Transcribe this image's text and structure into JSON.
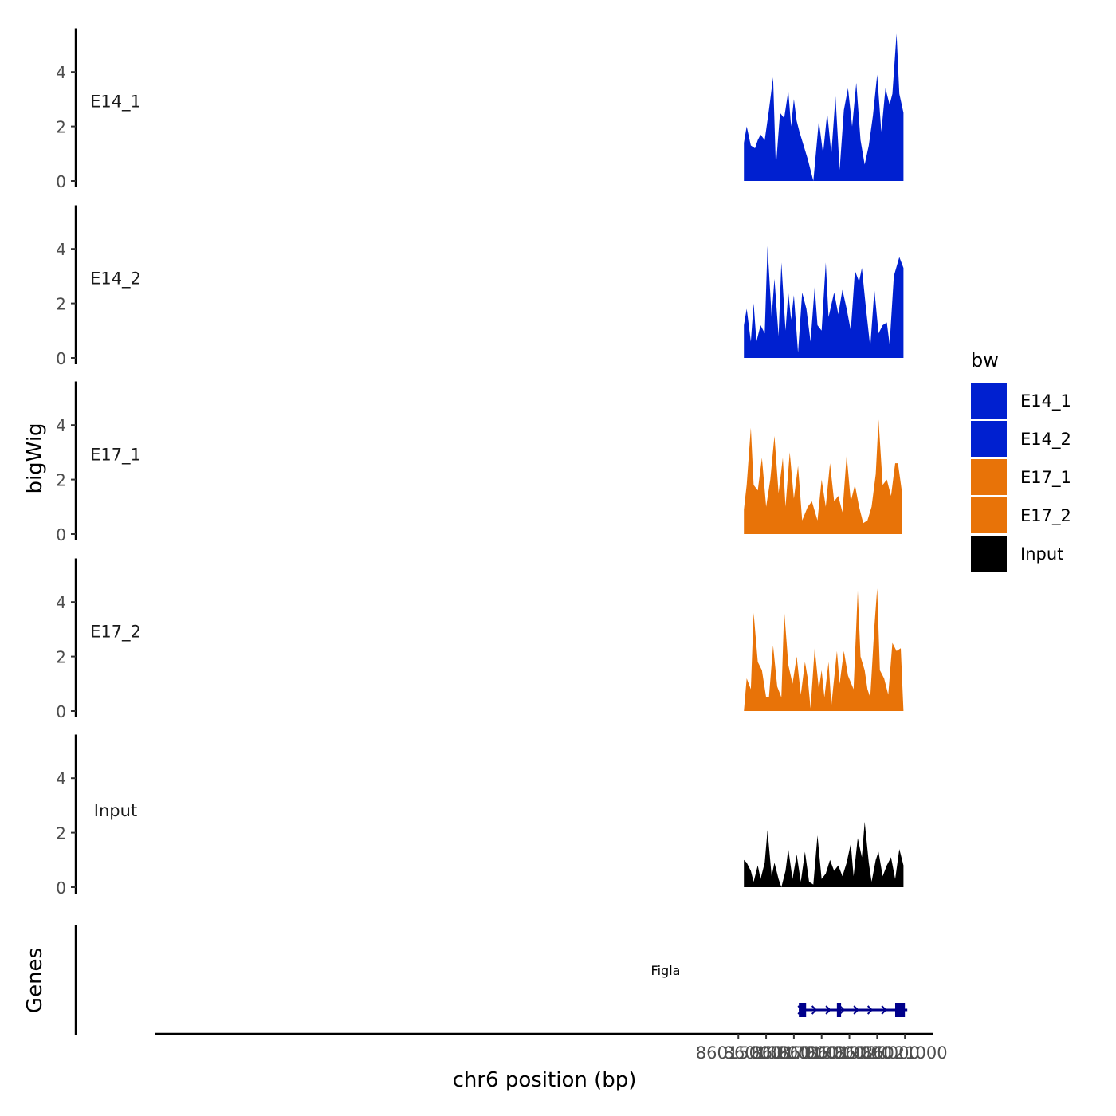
{
  "chart_data": {
    "type": "area",
    "ylabel": "bigWig",
    "xlabel": "chr6 position (bp)",
    "xlim": [
      85994000,
      86022000
    ],
    "x_ticks": [
      86015000,
      86016000,
      86017000,
      86018000,
      86019000,
      86020000,
      86021000
    ],
    "x_tick_labels": [
      "86015000",
      "86016000",
      "86017000",
      "86018000",
      "86019000",
      "86020000",
      "86021000"
    ],
    "ylim": [
      0,
      5.6
    ],
    "y_ticks": [
      0,
      2,
      4
    ],
    "y_tick_labels": [
      "0",
      "2",
      "4"
    ],
    "colors": {
      "E14": "#0020d0",
      "E17": "#e87308",
      "Input": "#000000",
      "gene": "#00008b"
    },
    "legend": {
      "title": "bw",
      "position": "right",
      "entries": [
        {
          "label": "E14_1",
          "color": "#0020d0"
        },
        {
          "label": "E14_2",
          "color": "#0020d0"
        },
        {
          "label": "E17_1",
          "color": "#e87308"
        },
        {
          "label": "E17_2",
          "color": "#e87308"
        },
        {
          "label": "Input",
          "color": "#000000"
        }
      ]
    },
    "series": [
      {
        "name": "E14_1",
        "color": "#0020d0",
        "x": [
          86015200,
          86015300,
          86015450,
          86015600,
          86015700,
          86015800,
          86015950,
          86016100,
          86016250,
          86016350,
          86016500,
          86016650,
          86016800,
          86016900,
          86017000,
          86017100,
          86017200,
          86017350,
          86017500,
          86017700,
          86017900,
          86018050,
          86018200,
          86018350,
          86018500,
          86018650,
          86018800,
          86018950,
          86019100,
          86019250,
          86019400,
          86019550,
          86019700,
          86019850,
          86020000,
          86020150,
          86020300,
          86020450,
          86020550,
          86020700,
          86020800,
          86020950
        ],
        "values": [
          1.4,
          2.0,
          1.3,
          1.2,
          1.5,
          1.7,
          1.5,
          2.6,
          3.8,
          0.5,
          2.5,
          2.3,
          3.3,
          2.0,
          3.0,
          2.2,
          1.8,
          1.3,
          0.8,
          0,
          2.2,
          1.0,
          2.5,
          1.0,
          3.1,
          0.4,
          2.6,
          3.4,
          2.0,
          3.6,
          1.5,
          0.6,
          1.3,
          2.4,
          3.9,
          1.8,
          3.4,
          2.8,
          3.2,
          5.4,
          3.2,
          2.5
        ]
      },
      {
        "name": "E14_2",
        "color": "#0020d0",
        "x": [
          86015200,
          86015300,
          86015450,
          86015550,
          86015650,
          86015800,
          86015950,
          86016050,
          86016200,
          86016300,
          86016450,
          86016550,
          86016700,
          86016800,
          86016900,
          86017000,
          86017150,
          86017300,
          86017450,
          86017600,
          86017750,
          86017850,
          86018000,
          86018150,
          86018250,
          86018450,
          86018600,
          86018750,
          86018900,
          86019050,
          86019200,
          86019350,
          86019450,
          86019600,
          86019750,
          86019900,
          86020050,
          86020200,
          86020350,
          86020450,
          86020600,
          86020800,
          86020950
        ],
        "values": [
          1.2,
          1.8,
          0.6,
          2.0,
          0.6,
          1.2,
          0.9,
          4.1,
          1.5,
          2.9,
          0.8,
          3.5,
          1.0,
          2.4,
          1.4,
          2.3,
          0.2,
          2.4,
          1.8,
          0.6,
          2.6,
          1.2,
          1.0,
          3.5,
          1.5,
          2.4,
          1.6,
          2.5,
          1.8,
          1.0,
          3.2,
          2.8,
          3.3,
          1.8,
          0.4,
          2.5,
          0.9,
          1.2,
          1.3,
          0.5,
          3.0,
          3.7,
          3.3
        ]
      },
      {
        "name": "E17_1",
        "color": "#e87308",
        "x": [
          86015200,
          86015300,
          86015450,
          86015550,
          86015700,
          86015850,
          86016000,
          86016150,
          86016300,
          86016450,
          86016600,
          86016700,
          86016850,
          86017000,
          86017150,
          86017300,
          86017500,
          86017650,
          86017850,
          86018000,
          86018150,
          86018300,
          86018450,
          86018600,
          86018750,
          86018900,
          86019050,
          86019200,
          86019350,
          86019500,
          86019650,
          86019800,
          86019950,
          86020050,
          86020200,
          86020350,
          86020500,
          86020650,
          86020750,
          86020900
        ],
        "values": [
          0.9,
          1.8,
          3.9,
          1.8,
          1.6,
          2.8,
          1.0,
          2.0,
          3.6,
          1.5,
          2.8,
          1.0,
          3.0,
          1.3,
          2.5,
          0.5,
          1.0,
          1.2,
          0.5,
          2.0,
          1.0,
          2.6,
          1.2,
          1.4,
          0.8,
          2.9,
          1.2,
          1.8,
          1.0,
          0.4,
          0.5,
          1.0,
          2.2,
          4.2,
          1.8,
          2.0,
          1.4,
          2.6,
          2.6,
          1.5
        ]
      },
      {
        "name": "E17_2",
        "color": "#e87308",
        "x": [
          86015200,
          86015300,
          86015450,
          86015550,
          86015700,
          86015850,
          86016000,
          86016100,
          86016250,
          86016400,
          86016550,
          86016650,
          86016800,
          86016950,
          86017100,
          86017250,
          86017400,
          86017500,
          86017600,
          86017750,
          86017900,
          86018000,
          86018100,
          86018250,
          86018350,
          86018550,
          86018650,
          86018800,
          86018950,
          86019150,
          86019300,
          86019400,
          86019550,
          86019650,
          86019750,
          86019900,
          86020000,
          86020100,
          86020250,
          86020400,
          86020550,
          86020700,
          86020850,
          86020950
        ],
        "values": [
          0,
          1.2,
          0.8,
          3.6,
          1.8,
          1.5,
          0.5,
          0.5,
          2.4,
          0.9,
          0.5,
          3.7,
          1.7,
          1.0,
          2.0,
          0.6,
          1.8,
          1.2,
          0.1,
          2.3,
          0.8,
          1.5,
          0.5,
          1.8,
          0.2,
          2.2,
          1.0,
          2.2,
          1.3,
          0.8,
          4.4,
          2.0,
          1.5,
          0.8,
          0.5,
          3.1,
          4.5,
          1.5,
          1.2,
          0.6,
          2.5,
          2.2,
          2.3,
          0
        ]
      },
      {
        "name": "Input",
        "color": "#000000",
        "x": [
          86015200,
          86015300,
          86015450,
          86015550,
          86015700,
          86015800,
          86015950,
          86016050,
          86016200,
          86016300,
          86016450,
          86016550,
          86016700,
          86016800,
          86016950,
          86017100,
          86017250,
          86017400,
          86017550,
          86017700,
          86017850,
          86018000,
          86018150,
          86018300,
          86018450,
          86018600,
          86018750,
          86018900,
          86019050,
          86019150,
          86019300,
          86019450,
          86019550,
          86019700,
          86019800,
          86019950,
          86020050,
          86020200,
          86020350,
          86020500,
          86020650,
          86020800,
          86020950
        ],
        "values": [
          1.0,
          0.9,
          0.6,
          0.2,
          0.8,
          0.3,
          0.9,
          2.1,
          0.4,
          0.9,
          0.3,
          0,
          0.6,
          1.4,
          0.3,
          1.2,
          0.2,
          1.3,
          0.2,
          0.1,
          1.9,
          0.3,
          0.5,
          1.0,
          0.6,
          0.8,
          0.4,
          0.9,
          1.6,
          0.4,
          1.8,
          1.1,
          2.4,
          0.9,
          0.2,
          1.0,
          1.3,
          0.4,
          0.8,
          1.1,
          0.3,
          1.4,
          0.8
        ]
      }
    ],
    "gene_track": {
      "ylabel": "Genes",
      "gene": "Figla",
      "strand": "+",
      "start": 86017180,
      "end": 86021000,
      "exons": [
        [
          86017180,
          86017440
        ],
        [
          86018550,
          86018700
        ],
        [
          86020650,
          86021000
        ]
      ]
    }
  }
}
